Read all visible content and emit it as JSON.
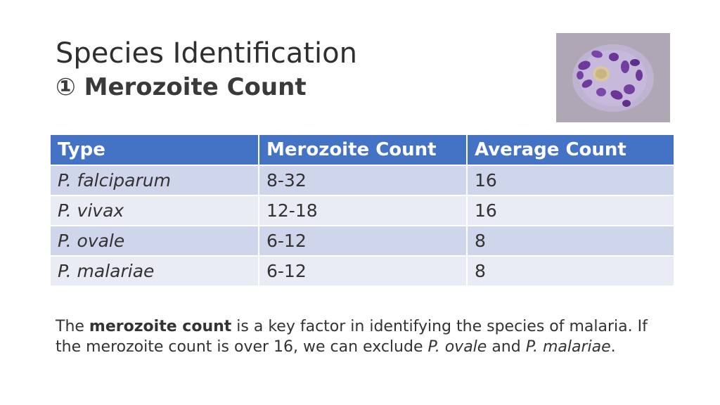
{
  "slide": {
    "title": "Species Identification",
    "subtitle": "① Merozoite Count"
  },
  "table": {
    "headers": [
      "Type",
      "Merozoite Count",
      "Average Count"
    ],
    "rows": [
      {
        "type": "P. falciparum",
        "count": "8-32",
        "average": "16"
      },
      {
        "type": "P. vivax",
        "count": "12-18",
        "average": "16"
      },
      {
        "type": "P. ovale",
        "count": "6-12",
        "average": "8"
      },
      {
        "type": "P. malariae",
        "count": "6-12",
        "average": "8"
      }
    ]
  },
  "description": {
    "part1": "The ",
    "bold": "merozoite count",
    "part2": " is a key factor in identifying the species of malaria. If the merozoite count is over 16, we can exclude ",
    "italic1": "P. ovale",
    "part3": " and ",
    "italic2": "P. malariae",
    "part4": "."
  },
  "colors": {
    "header_bg": "#4472c4",
    "row_odd_bg": "#cfd5ea",
    "row_even_bg": "#e9ebf5"
  },
  "image": {
    "icon": "micrograph-icon"
  }
}
